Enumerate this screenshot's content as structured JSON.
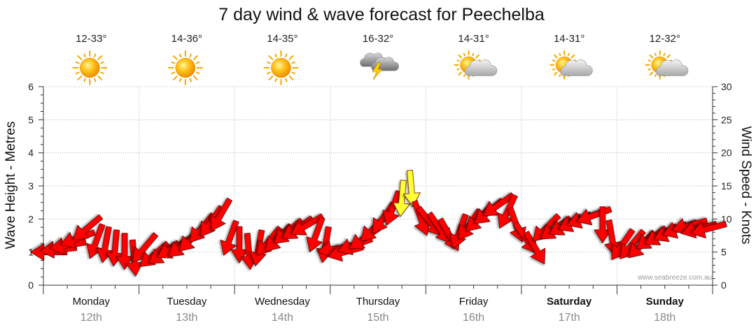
{
  "chart_data": {
    "type": "line",
    "title": "7 day wind & wave forecast for Peechelba",
    "ylabel_left": "Wave Height - Metres",
    "ylabel_right": "Wind Speed - Knots",
    "ylim_left": [
      0,
      6
    ],
    "ylim_right": [
      0,
      30
    ],
    "yticks_left": [
      "0",
      "1",
      "2",
      "3",
      "4",
      "5",
      "6"
    ],
    "yticks_right": [
      "0",
      "5",
      "10",
      "15",
      "20",
      "25",
      "30"
    ],
    "watermark": "www.seabreeze.com.au",
    "days": [
      {
        "name": "Monday",
        "date": "12th",
        "temp": "12-33°",
        "weather": "sunny",
        "bold": false
      },
      {
        "name": "Tuesday",
        "date": "13th",
        "temp": "14-36°",
        "weather": "sunny",
        "bold": false
      },
      {
        "name": "Wednesday",
        "date": "14th",
        "temp": "14-35°",
        "weather": "sunny",
        "bold": false
      },
      {
        "name": "Thursday",
        "date": "15th",
        "temp": "16-32°",
        "weather": "storm",
        "bold": false
      },
      {
        "name": "Friday",
        "date": "16th",
        "temp": "14-31°",
        "weather": "partly-cloudy",
        "bold": false
      },
      {
        "name": "Saturday",
        "date": "17th",
        "temp": "14-31°",
        "weather": "partly-cloudy",
        "bold": true
      },
      {
        "name": "Sunday",
        "date": "18th",
        "temp": "12-32°",
        "weather": "partly-cloudy",
        "bold": true
      }
    ],
    "series": [
      {
        "name": "Wind Speed (knots)",
        "axis": "right",
        "x_days": [
          0.0,
          0.1,
          0.2,
          0.3,
          0.4,
          0.5,
          0.6,
          0.7,
          0.8,
          0.9,
          1.0,
          1.1,
          1.2,
          1.3,
          1.4,
          1.5,
          1.6,
          1.7,
          1.8,
          1.9,
          2.0,
          2.1,
          2.2,
          2.3,
          2.4,
          2.5,
          2.6,
          2.7,
          2.8,
          2.9,
          3.0,
          3.1,
          3.2,
          3.3,
          3.4,
          3.5,
          3.6,
          3.7,
          3.8,
          3.9,
          4.0,
          4.1,
          4.2,
          4.3,
          4.4,
          4.5,
          4.6,
          4.7,
          4.8,
          4.9,
          5.0,
          5.1,
          5.2,
          5.3,
          5.4,
          5.5,
          5.6,
          5.7,
          5.8,
          5.9,
          6.0,
          6.1,
          6.2,
          6.3,
          6.4,
          6.5,
          6.6,
          6.7,
          6.8,
          6.9
        ],
        "values": [
          5,
          5.4,
          6,
          7,
          8.5,
          6.5,
          6,
          5.5,
          5,
          4,
          5.5,
          4.5,
          4.8,
          5.5,
          6,
          7,
          8.5,
          9.5,
          10.5,
          7,
          6,
          5,
          5.5,
          6.5,
          7,
          8,
          8.5,
          9,
          7.5,
          6,
          5.5,
          5,
          6,
          7,
          8.5,
          10,
          11.5,
          13,
          14.5,
          10,
          9.5,
          8.5,
          7.5,
          8,
          9,
          10,
          11,
          12,
          11,
          9,
          7,
          5.5,
          8.5,
          8.5,
          9,
          9.5,
          10,
          10.5,
          9,
          7,
          6,
          6,
          6,
          7,
          7.5,
          8,
          8.5,
          9,
          8.5,
          8.5
        ],
        "directions_deg": [
          270,
          265,
          260,
          250,
          230,
          200,
          190,
          185,
          180,
          175,
          220,
          230,
          235,
          240,
          230,
          225,
          220,
          215,
          210,
          200,
          180,
          175,
          190,
          220,
          225,
          230,
          235,
          240,
          200,
          190,
          260,
          255,
          250,
          235,
          225,
          215,
          200,
          185,
          175,
          160,
          140,
          145,
          150,
          200,
          215,
          225,
          230,
          235,
          205,
          160,
          145,
          150,
          225,
          235,
          240,
          245,
          250,
          250,
          180,
          170,
          215,
          220,
          225,
          235,
          240,
          245,
          250,
          255,
          255,
          255
        ],
        "highlight_color": "#ffff33",
        "base_color": "#ff0000"
      }
    ]
  }
}
